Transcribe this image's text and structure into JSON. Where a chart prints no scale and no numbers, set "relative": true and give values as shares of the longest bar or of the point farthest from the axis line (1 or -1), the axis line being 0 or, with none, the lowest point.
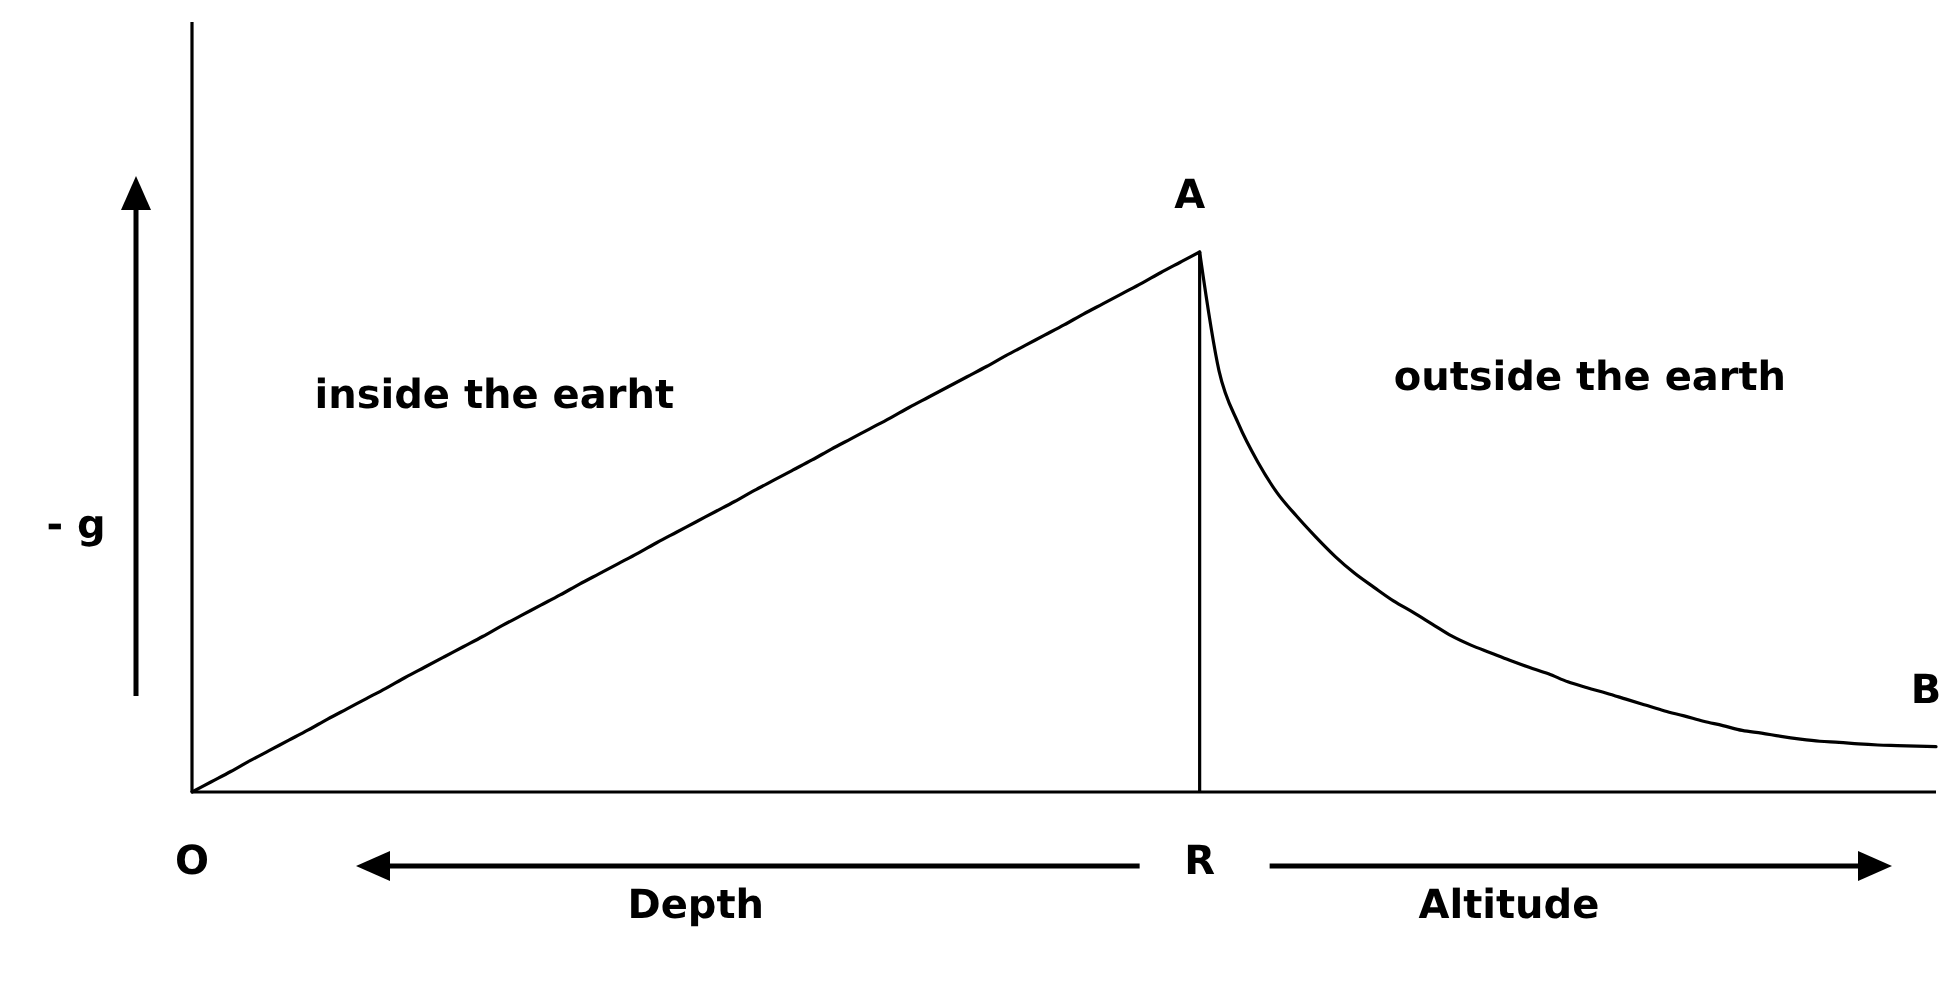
{
  "chart_data": {
    "type": "line",
    "relative": true,
    "ylabel": "- g",
    "categories": [
      "O",
      null,
      null,
      null,
      null,
      null,
      null,
      null,
      null,
      null,
      null,
      null,
      null,
      null,
      null,
      null,
      null,
      null,
      null,
      null,
      null,
      null,
      null,
      null,
      null,
      null,
      null,
      null,
      null,
      null,
      null,
      null,
      null,
      null,
      null,
      null,
      null,
      null,
      null,
      null,
      null,
      null,
      null,
      null,
      null,
      null,
      null,
      null,
      null,
      null,
      null,
      null,
      "R",
      null,
      null,
      null,
      null,
      null,
      null,
      null,
      null,
      null,
      null,
      null,
      null,
      null,
      null,
      null,
      null,
      null,
      null,
      null,
      null,
      null,
      null,
      null,
      null,
      null,
      null,
      null,
      null,
      null,
      null,
      null,
      null,
      null,
      null,
      null,
      null,
      null,
      null
    ],
    "series": [
      {
        "color": "#000000",
        "values": [
          0,
          0.019,
          0.038,
          0.058,
          0.077,
          0.096,
          0.115,
          0.135,
          0.154,
          0.173,
          0.192,
          0.212,
          0.231,
          0.25,
          0.269,
          0.288,
          0.308,
          0.327,
          0.346,
          0.365,
          0.385,
          0.404,
          0.423,
          0.442,
          0.462,
          0.481,
          0.5,
          0.519,
          0.538,
          0.558,
          0.577,
          0.596,
          0.615,
          0.635,
          0.654,
          0.673,
          0.692,
          0.712,
          0.731,
          0.75,
          0.769,
          0.788,
          0.808,
          0.827,
          0.846,
          0.865,
          0.885,
          0.904,
          0.923,
          0.942,
          0.962,
          0.981,
          1,
          null,
          null,
          null,
          null,
          null,
          null,
          null,
          null,
          null,
          null,
          null,
          null,
          null,
          null,
          null,
          null,
          null,
          null,
          null,
          null,
          null,
          null,
          null,
          null,
          null,
          null,
          null,
          null,
          null,
          null,
          null,
          null,
          null,
          null,
          null,
          null,
          null,
          null
        ]
      },
      {
        "color": "#000000",
        "values": [
          null,
          null,
          null,
          null,
          null,
          null,
          null,
          null,
          null,
          null,
          null,
          null,
          null,
          null,
          null,
          null,
          null,
          null,
          null,
          null,
          null,
          null,
          null,
          null,
          null,
          null,
          null,
          null,
          null,
          null,
          null,
          null,
          null,
          null,
          null,
          null,
          null,
          null,
          null,
          null,
          null,
          null,
          null,
          null,
          null,
          null,
          null,
          null,
          null,
          null,
          null,
          null,
          1,
          0.78,
          0.682,
          0.611,
          0.554,
          0.511,
          0.472,
          0.436,
          0.405,
          0.379,
          0.354,
          0.333,
          0.311,
          0.289,
          0.272,
          0.258,
          0.244,
          0.231,
          0.219,
          0.204,
          0.193,
          0.183,
          0.172,
          0.161,
          0.15,
          0.141,
          0.131,
          0.123,
          0.114,
          0.109,
          0.103,
          0.098,
          0.094,
          0.092,
          0.089,
          0.087,
          0.086,
          0.085,
          0.084
        ]
      }
    ],
    "ref_lines": [
      {
        "axis": "x",
        "value": "R",
        "color": "#000000"
      }
    ],
    "annotations": [
      {
        "text": "A",
        "x": "R",
        "y": 1
      },
      {
        "text": "B",
        "y": 0.084
      },
      "inside the earht",
      "outside the earth",
      "Depth",
      "Altitude"
    ]
  }
}
